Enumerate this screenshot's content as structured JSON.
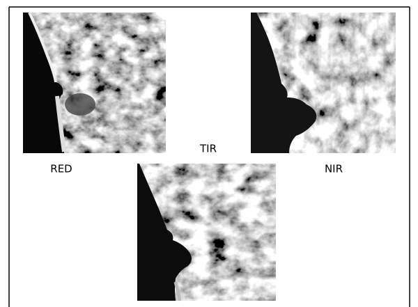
{
  "images": [
    {
      "label": "RED"
    },
    {
      "label": "NIR"
    },
    {
      "label": "TIR"
    }
  ]
}
